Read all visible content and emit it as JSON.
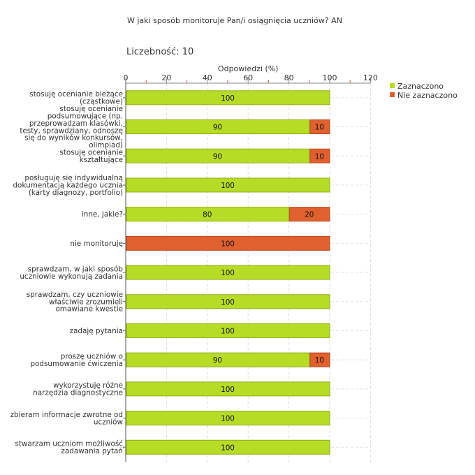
{
  "chart_data": {
    "type": "bar",
    "orientation": "horizontal",
    "stacked": true,
    "title": "W jaki sposób monitoruje Pan/i osiągnięcia uczniów?  AN",
    "sample_label": "Liczebność:",
    "sample_value": "10",
    "xlabel": "Odpowiedzi (%)",
    "xlim": [
      0,
      120
    ],
    "xticks": [
      "0",
      "20",
      "40",
      "60",
      "80",
      "100",
      "120"
    ],
    "categories": [
      [
        "stosuję ocenianie bieżące",
        "(cząstkowe)"
      ],
      [
        "stosuję ocenianie",
        "podsumowujące (np.",
        "przeprowadzam klasówki,",
        "testy, sprawdziany, odnoszę",
        "się do wyników konkursów,",
        "olimpiad)"
      ],
      [
        "stosuję ocenianie",
        "kształtujące"
      ],
      [
        "posługuję się indywidualną",
        "dokumentacją każdego ucznia",
        "(karty diagnozy, portfolio)"
      ],
      [
        "inne, jakie?"
      ],
      [
        "nie monitoruję"
      ],
      [
        "sprawdzam, w jaki sposób",
        "uczniowie wykonują zadania"
      ],
      [
        "sprawdzam, czy uczniowie",
        "właściwie zrozumieli",
        "omawiane kwestie"
      ],
      [
        "zadaję pytania"
      ],
      [
        "proszę uczniów o",
        "podsumowanie ćwiczenia"
      ],
      [
        "wykorzystuję różne",
        "narzędzia diagnostyczne"
      ],
      [
        "zbieram informacje zwrotne od",
        "uczniów"
      ],
      [
        "stwarzam uczniom możliwość",
        "zadawania pytań"
      ]
    ],
    "series": [
      {
        "name": "Zaznaczono",
        "color": "#b7dc26",
        "values": [
          100,
          90,
          90,
          100,
          80,
          0,
          100,
          100,
          100,
          90,
          100,
          100,
          100
        ]
      },
      {
        "name": "Nie zaznaczono",
        "color": "#e0612e",
        "values": [
          0,
          10,
          10,
          0,
          20,
          100,
          0,
          0,
          0,
          10,
          0,
          0,
          0
        ]
      }
    ],
    "legend_position": "top-right",
    "grid": true
  }
}
